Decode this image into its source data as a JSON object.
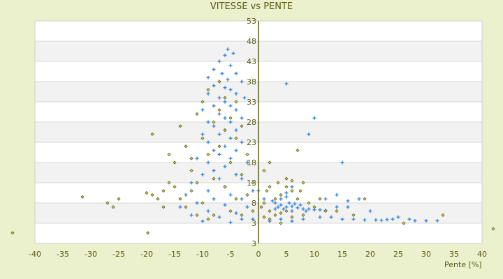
{
  "chart_data": {
    "type": "scatter",
    "title": "VITESSE vs PENTE",
    "xlabel": "Pente [%]",
    "ylabel": "",
    "xlim": [
      -40,
      40
    ],
    "ylim": [
      -2,
      53
    ],
    "x_ticks": [
      "-40",
      "-35",
      "-30",
      "-25",
      "-20",
      "-15",
      "-10",
      "-5",
      "0",
      "5",
      "10",
      "15",
      "20",
      "25",
      "30",
      "35",
      "40"
    ],
    "y_ticks": [
      "53",
      "48",
      "43",
      "38",
      "33",
      "28",
      "23",
      "18",
      "13",
      "8",
      "3",
      "3"
    ],
    "grid": "horizontal bands",
    "legend": "none",
    "series": [
      {
        "color": "#3a87d8",
        "marker": "plus",
        "points": [
          [
            -5.5,
            46
          ],
          [
            -6,
            44.5
          ],
          [
            -4.5,
            45
          ],
          [
            -7,
            43
          ],
          [
            -5,
            42
          ],
          [
            -8,
            41
          ],
          [
            -6.5,
            40
          ],
          [
            -4,
            40
          ],
          [
            -9,
            39
          ],
          [
            -5.5,
            38.5
          ],
          [
            -7,
            38
          ],
          [
            -3,
            38
          ],
          [
            -8,
            37
          ],
          [
            -6,
            36.5
          ],
          [
            -5,
            36
          ],
          [
            -4,
            35
          ],
          [
            -9,
            35
          ],
          [
            -7,
            34
          ],
          [
            -2.5,
            34
          ],
          [
            -6,
            33
          ],
          [
            -8,
            32
          ],
          [
            -5,
            32
          ],
          [
            -4,
            31
          ],
          [
            -10,
            31
          ],
          [
            -7,
            30
          ],
          [
            -6,
            29
          ],
          [
            -3,
            29
          ],
          [
            -9,
            28
          ],
          [
            -5,
            28
          ],
          [
            -8,
            27
          ],
          [
            -6,
            26
          ],
          [
            -4,
            26
          ],
          [
            -7,
            25
          ],
          [
            -10,
            25
          ],
          [
            -5,
            24
          ],
          [
            -9,
            23
          ],
          [
            -3,
            23
          ],
          [
            -6,
            22
          ],
          [
            -8,
            21
          ],
          [
            -4,
            21
          ],
          [
            -7,
            20
          ],
          [
            -11,
            19
          ],
          [
            -5,
            19
          ],
          [
            -9,
            18
          ],
          [
            -2,
            18
          ],
          [
            -6,
            17
          ],
          [
            -8,
            16
          ],
          [
            -4,
            15
          ],
          [
            -10,
            15
          ],
          [
            -7,
            14
          ],
          [
            -3,
            14
          ],
          [
            -12,
            13
          ],
          [
            -6,
            12
          ],
          [
            -9,
            11
          ],
          [
            -1,
            11
          ],
          [
            -5,
            10
          ],
          [
            -13,
            10
          ],
          [
            -8,
            9
          ],
          [
            -3,
            9
          ],
          [
            -11,
            8
          ],
          [
            -6,
            7.5
          ],
          [
            -14,
            7
          ],
          [
            -2,
            7
          ],
          [
            -9,
            6
          ],
          [
            -4,
            5.5
          ],
          [
            -12,
            5
          ],
          [
            -7,
            4.5
          ],
          [
            -1,
            4
          ],
          [
            -10,
            3.5
          ],
          [
            -5,
            3.2
          ],
          [
            -3,
            4
          ],
          [
            3,
            8
          ],
          [
            4,
            7.5
          ],
          [
            5,
            7
          ],
          [
            6,
            7.2
          ],
          [
            4.5,
            6.5
          ],
          [
            5.5,
            8
          ],
          [
            7,
            6.8
          ],
          [
            8,
            6.5
          ],
          [
            3.5,
            7
          ],
          [
            6.5,
            7.8
          ],
          [
            9,
            6.5
          ],
          [
            10,
            6.3
          ],
          [
            4,
            9
          ],
          [
            5,
            9.5
          ],
          [
            6,
            6
          ],
          [
            7.5,
            7.5
          ],
          [
            8.5,
            6
          ],
          [
            11,
            6.3
          ],
          [
            12,
            6.2
          ],
          [
            3,
            6.5
          ],
          [
            2.5,
            8.5
          ],
          [
            5,
            10.5
          ],
          [
            6,
            12
          ],
          [
            5,
            37.5
          ],
          [
            10,
            29
          ],
          [
            15,
            18
          ],
          [
            9,
            25
          ],
          [
            14,
            10
          ],
          [
            16,
            8.5
          ],
          [
            18,
            9
          ],
          [
            20,
            6
          ],
          [
            13,
            4.5
          ],
          [
            15,
            4
          ],
          [
            17,
            4
          ],
          [
            19,
            3.8
          ],
          [
            21,
            3.8
          ],
          [
            22,
            3.7
          ],
          [
            23,
            3.9
          ],
          [
            24,
            4
          ],
          [
            25,
            4.5
          ],
          [
            27,
            4
          ],
          [
            28,
            3.6
          ],
          [
            30,
            3.6
          ],
          [
            32,
            3.6
          ],
          [
            11,
            4.5
          ],
          [
            8,
            4
          ],
          [
            6,
            3.5
          ],
          [
            4,
            4
          ],
          [
            2,
            3.5
          ],
          [
            1,
            9
          ],
          [
            0,
            11
          ],
          [
            12,
            9
          ],
          [
            14,
            7
          ],
          [
            16,
            7
          ]
        ]
      },
      {
        "color": "#9a9a1a",
        "marker": "diamond",
        "points": [
          [
            -44,
            0.6
          ],
          [
            42,
            1.6
          ],
          [
            -19.8,
            0.6
          ],
          [
            -31.5,
            9.5
          ],
          [
            -27,
            8
          ],
          [
            -26,
            7
          ],
          [
            -25,
            9
          ],
          [
            -20,
            10.5
          ],
          [
            -19,
            10
          ],
          [
            -18,
            9
          ],
          [
            -17,
            7
          ],
          [
            -19,
            25
          ],
          [
            -16,
            20
          ],
          [
            -15,
            18
          ],
          [
            -14,
            27
          ],
          [
            -13,
            22
          ],
          [
            -12,
            16
          ],
          [
            -11,
            30
          ],
          [
            -10,
            33
          ],
          [
            -10,
            24
          ],
          [
            -9,
            36
          ],
          [
            -9,
            20
          ],
          [
            -8,
            28
          ],
          [
            -8,
            14
          ],
          [
            -7,
            38
          ],
          [
            -7,
            31
          ],
          [
            -7,
            22
          ],
          [
            -6,
            34
          ],
          [
            -6,
            26
          ],
          [
            -6,
            12
          ],
          [
            -5,
            29
          ],
          [
            -5,
            18
          ],
          [
            -4,
            33
          ],
          [
            -4,
            24
          ],
          [
            -4,
            9
          ],
          [
            -3,
            27
          ],
          [
            -3,
            15
          ],
          [
            -2,
            20
          ],
          [
            -2,
            10
          ],
          [
            -1,
            13
          ],
          [
            -1,
            6
          ],
          [
            -12,
            11
          ],
          [
            -13,
            7
          ],
          [
            -14,
            9
          ],
          [
            -15,
            12
          ],
          [
            -16,
            13
          ],
          [
            -17,
            11
          ],
          [
            -11,
            5
          ],
          [
            -9,
            4
          ],
          [
            -8,
            5
          ],
          [
            -10,
            8
          ],
          [
            -12,
            19
          ],
          [
            -11,
            13
          ],
          [
            -5,
            6
          ],
          [
            -3,
            5
          ],
          [
            1,
            8
          ],
          [
            1.5,
            11
          ],
          [
            2,
            6
          ],
          [
            2,
            12
          ],
          [
            3,
            9
          ],
          [
            3,
            5
          ],
          [
            3.5,
            13
          ],
          [
            4,
            10
          ],
          [
            4,
            5.5
          ],
          [
            5,
            12
          ],
          [
            5,
            6
          ],
          [
            6,
            11
          ],
          [
            6,
            4.5
          ],
          [
            7,
            9
          ],
          [
            7.5,
            11
          ],
          [
            8,
            5
          ],
          [
            9,
            8
          ],
          [
            10,
            7
          ],
          [
            11,
            9
          ],
          [
            12,
            6
          ],
          [
            14,
            6
          ],
          [
            17,
            5
          ],
          [
            19,
            9
          ],
          [
            26,
            3
          ],
          [
            33,
            5
          ],
          [
            1,
            16
          ],
          [
            2,
            18
          ],
          [
            7,
            21
          ],
          [
            8,
            13
          ],
          [
            4,
            3
          ],
          [
            2,
            4
          ],
          [
            0.5,
            7
          ],
          [
            1,
            4.5
          ],
          [
            6,
            13.5
          ],
          [
            5,
            14
          ]
        ]
      }
    ]
  }
}
